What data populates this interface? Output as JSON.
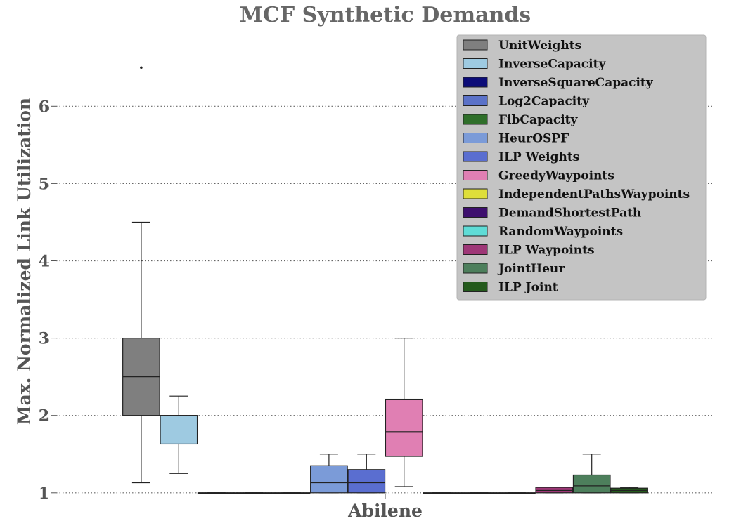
{
  "chart_data": {
    "type": "box",
    "title": "MCF Synthetic Demands",
    "xlabel": "Abilene",
    "ylabel": "Max. Normalized Link Utilization",
    "ylim": [
      0.98,
      6.92
    ],
    "yticks": [
      1,
      2,
      3,
      4,
      5,
      6
    ],
    "grid": "y-dotted",
    "legend_position": "top-right",
    "series": [
      {
        "name": "UnitWeights",
        "color": "#7f7f7f",
        "slot": 0,
        "whislo": 1.13,
        "q1": 2.0,
        "median": 2.5,
        "q3": 3.0,
        "whishi": 4.5,
        "fliers": [
          6.5
        ]
      },
      {
        "name": "InverseCapacity",
        "color": "#9ecae1",
        "slot": 1,
        "whislo": 1.25,
        "q1": 1.63,
        "median": 2.0,
        "q3": 2.0,
        "whishi": 2.25,
        "fliers": []
      },
      {
        "name": "InverseSquareCapacity",
        "color": "#0c0c78",
        "slot": 2,
        "whislo": 1.0,
        "q1": 1.0,
        "median": 1.0,
        "q3": 1.0,
        "whishi": 1.0,
        "fliers": []
      },
      {
        "name": "Log2Capacity",
        "color": "#5b72c8",
        "slot": 3,
        "whislo": 1.0,
        "q1": 1.0,
        "median": 1.0,
        "q3": 1.0,
        "whishi": 1.0,
        "fliers": []
      },
      {
        "name": "FibCapacity",
        "color": "#2f6f2a",
        "slot": 4,
        "whislo": 1.0,
        "q1": 1.0,
        "median": 1.0,
        "q3": 1.0,
        "whishi": 1.0,
        "fliers": []
      },
      {
        "name": "HeurOSPF",
        "color": "#7b9bd8",
        "slot": 5,
        "whislo": 1.0,
        "q1": 1.0,
        "median": 1.13,
        "q3": 1.35,
        "whishi": 1.5,
        "fliers": []
      },
      {
        "name": "ILP Weights",
        "color": "#5a6ed0",
        "slot": 6,
        "whislo": 1.0,
        "q1": 1.0,
        "median": 1.13,
        "q3": 1.3,
        "whishi": 1.5,
        "fliers": []
      },
      {
        "name": "GreedyWaypoints",
        "color": "#e07fb3",
        "slot": 7,
        "whislo": 1.08,
        "q1": 1.47,
        "median": 1.79,
        "q3": 2.21,
        "whishi": 3.0,
        "fliers": []
      },
      {
        "name": "IndependentPathsWaypoints",
        "color": "#dede3a",
        "slot": 8,
        "whislo": 1.0,
        "q1": 1.0,
        "median": 1.0,
        "q3": 1.0,
        "whishi": 1.0,
        "fliers": []
      },
      {
        "name": "DemandShortestPath",
        "color": "#3e0f6e",
        "slot": 9,
        "whislo": 1.0,
        "q1": 1.0,
        "median": 1.0,
        "q3": 1.0,
        "whishi": 1.0,
        "fliers": []
      },
      {
        "name": "RandomWaypoints",
        "color": "#5fdcd6",
        "slot": 10,
        "whislo": 1.0,
        "q1": 1.0,
        "median": 1.0,
        "q3": 1.0,
        "whishi": 1.0,
        "fliers": []
      },
      {
        "name": "ILP Waypoints",
        "color": "#9e3777",
        "slot": 11,
        "whislo": 1.0,
        "q1": 1.0,
        "median": 1.03,
        "q3": 1.07,
        "whishi": 1.07,
        "fliers": []
      },
      {
        "name": "JointHeur",
        "color": "#4d7f5c",
        "slot": 12,
        "whislo": 1.0,
        "q1": 1.0,
        "median": 1.09,
        "q3": 1.23,
        "whishi": 1.5,
        "fliers": []
      },
      {
        "name": "ILP Joint",
        "color": "#245a1c",
        "slot": 13,
        "whislo": 1.0,
        "q1": 1.0,
        "median": 1.03,
        "q3": 1.06,
        "whishi": 1.07,
        "fliers": []
      }
    ]
  }
}
